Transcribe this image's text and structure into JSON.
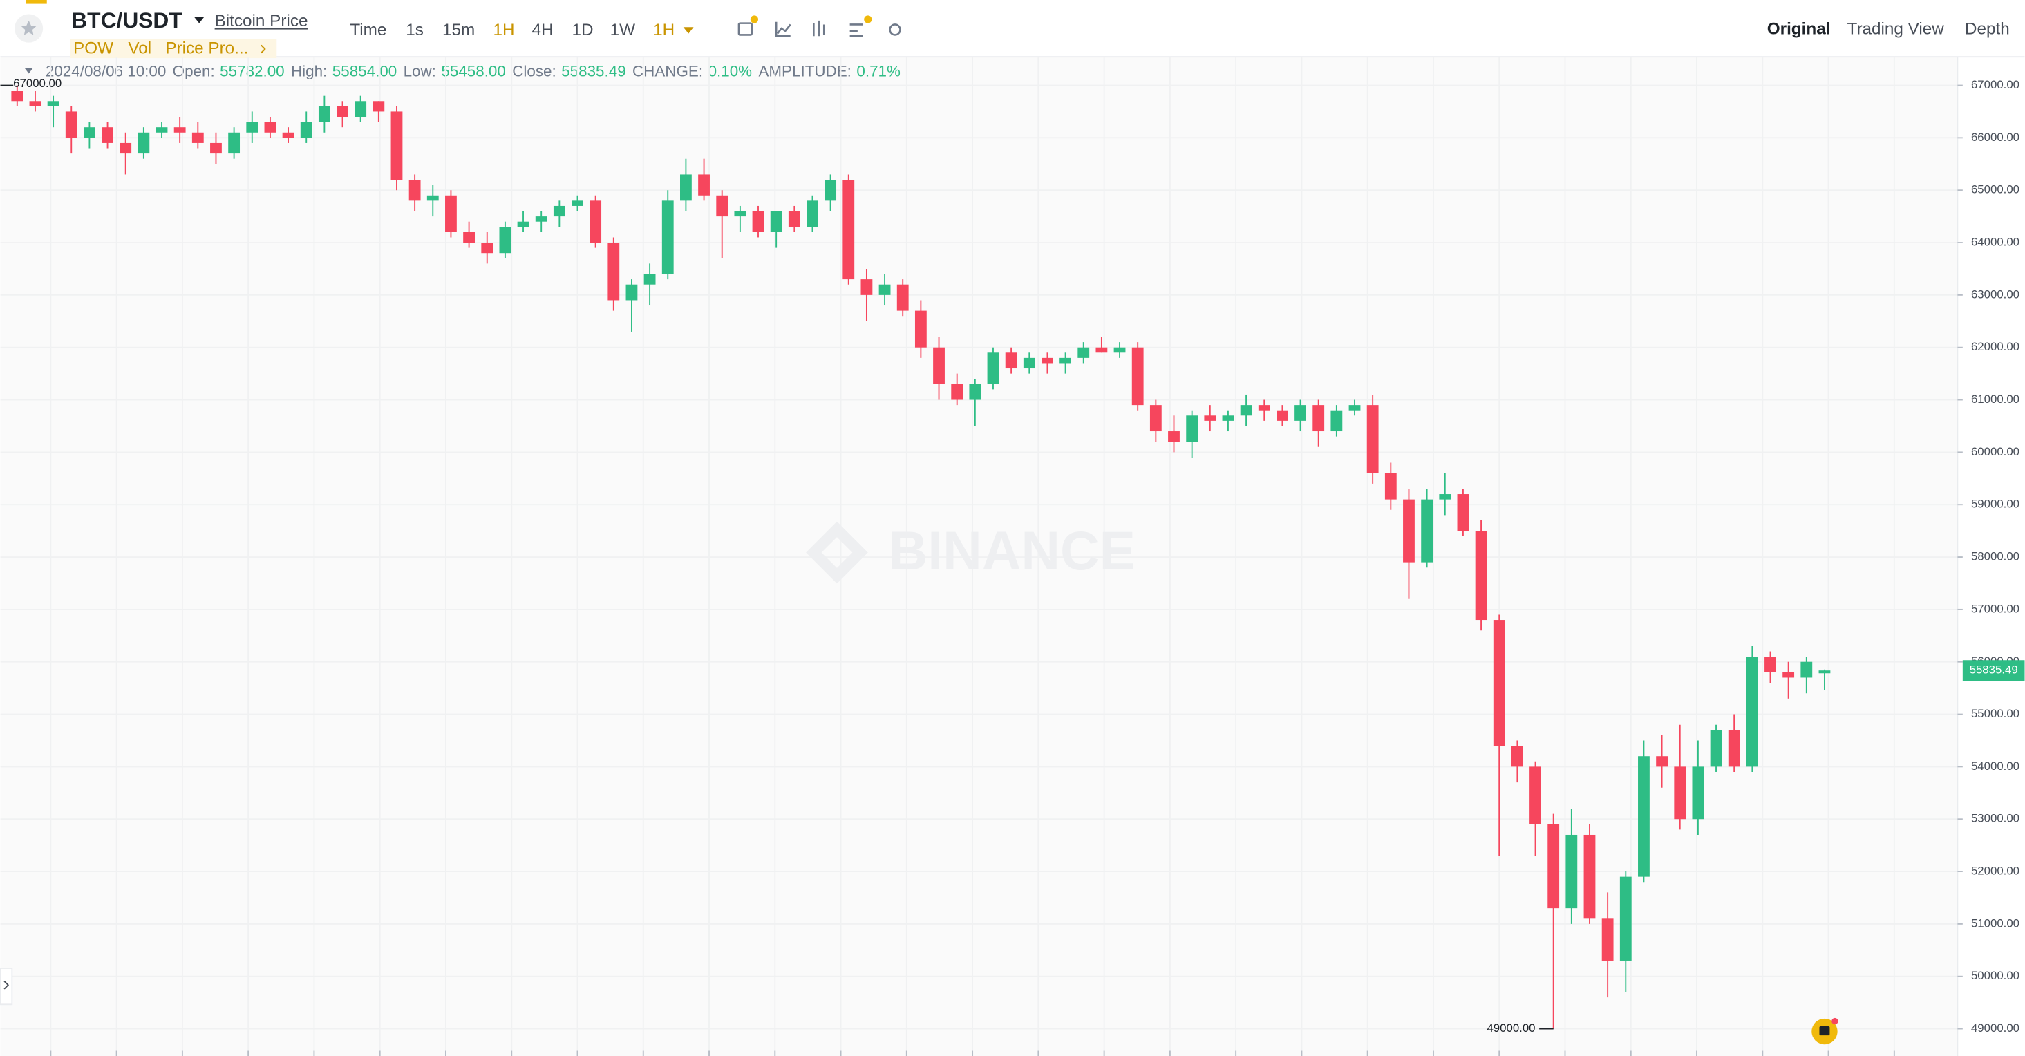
{
  "header": {
    "symbol": "BTC/USDT",
    "price_link": "Bitcoin Price",
    "intervals": [
      "Time",
      "1s",
      "15m",
      "1H",
      "4H",
      "1D",
      "1W"
    ],
    "interval_menu": "1H",
    "indicators": [
      "POW",
      "Vol",
      "Price Pro..."
    ],
    "views": [
      "Original",
      "Trading View",
      "Depth"
    ]
  },
  "info": {
    "date": "2024/08/06 10:00",
    "fields": [
      {
        "label": "Open:",
        "value": "55782.00"
      },
      {
        "label": "High:",
        "value": "55854.00"
      },
      {
        "label": "Low:",
        "value": "55458.00"
      },
      {
        "label": "Close:",
        "value": "55835.49"
      },
      {
        "label": "CHANGE:",
        "value": "0.10%"
      },
      {
        "label": "AMPLITUDE:",
        "value": "0.71%"
      }
    ]
  },
  "chart_data": {
    "type": "candlestick",
    "watermark": "BINANCE",
    "open": [
      66900,
      66700,
      66600,
      66500,
      66000,
      66200,
      65900,
      65700,
      66100,
      66200,
      66100,
      65900,
      65700,
      66100,
      66300,
      66100,
      66000,
      66300,
      66600,
      66400,
      66700,
      66500,
      65200,
      64800,
      64900,
      64200,
      64000,
      63800,
      64300,
      64400,
      64500,
      64700,
      64800,
      64000,
      62900,
      63200,
      63400,
      64800,
      65300,
      64900,
      64500,
      64600,
      64200,
      64600,
      64300,
      64800,
      65200,
      63300,
      63000,
      63200,
      62700,
      62000,
      61300,
      61000,
      61300,
      61900,
      61600,
      61800,
      61700,
      61800,
      62000,
      61900,
      62000,
      60900,
      60400,
      60200,
      60700,
      60600,
      60700,
      60900,
      60800,
      60600,
      60900,
      60400,
      60800,
      60900,
      59600,
      59100,
      57900,
      59100,
      59200,
      58500,
      56800,
      54400,
      54000,
      52900,
      51300,
      52700,
      51100,
      50300,
      51900,
      54200,
      54000,
      53000,
      54000,
      54700,
      54000,
      56100,
      55800,
      55700,
      55782
    ],
    "high": [
      67000,
      66900,
      66800,
      66600,
      66300,
      66300,
      66100,
      66200,
      66300,
      66400,
      66300,
      66100,
      66200,
      66500,
      66400,
      66200,
      66500,
      66800,
      66700,
      66800,
      66700,
      66600,
      65300,
      65100,
      65000,
      64400,
      64200,
      64400,
      64600,
      64600,
      64800,
      64900,
      64900,
      64100,
      63300,
      63600,
      65000,
      65600,
      65600,
      65000,
      64700,
      64700,
      64600,
      64700,
      64900,
      65300,
      65300,
      63500,
      63400,
      63300,
      62900,
      62200,
      61500,
      61400,
      62000,
      62000,
      61900,
      61900,
      61900,
      62100,
      62200,
      62100,
      62100,
      61000,
      60700,
      60800,
      60900,
      60800,
      61100,
      61000,
      60900,
      61000,
      61000,
      60900,
      61000,
      61100,
      59800,
      59300,
      59300,
      59600,
      59300,
      58700,
      56900,
      54500,
      54100,
      53100,
      53200,
      52900,
      51600,
      52000,
      54500,
      54600,
      54800,
      54500,
      54800,
      55000,
      56300,
      56200,
      56000,
      56100,
      55854
    ],
    "low": [
      66600,
      66500,
      66200,
      65700,
      65800,
      65800,
      65300,
      65600,
      66000,
      65900,
      65800,
      65500,
      65600,
      65900,
      66000,
      65900,
      65900,
      66100,
      66200,
      66300,
      66300,
      65000,
      64600,
      64500,
      64100,
      63900,
      63600,
      63700,
      64200,
      64200,
      64300,
      64600,
      63900,
      62700,
      62300,
      62800,
      63300,
      64600,
      64800,
      63700,
      64200,
      64100,
      63900,
      64200,
      64200,
      64600,
      63200,
      62500,
      62800,
      62600,
      61800,
      61000,
      60900,
      60500,
      61200,
      61500,
      61500,
      61500,
      61500,
      61700,
      61900,
      61800,
      60800,
      60200,
      60000,
      59900,
      60400,
      60400,
      60500,
      60600,
      60500,
      60400,
      60100,
      60300,
      60700,
      59400,
      58900,
      57200,
      57800,
      58800,
      58400,
      56600,
      52300,
      53700,
      52300,
      49000,
      51000,
      51000,
      49600,
      49700,
      51800,
      53600,
      52800,
      52700,
      53900,
      53900,
      53900,
      55600,
      55300,
      55400,
      55458
    ],
    "close": [
      66700,
      66600,
      66700,
      66000,
      66200,
      65900,
      65700,
      66100,
      66200,
      66100,
      65900,
      65700,
      66100,
      66300,
      66100,
      66000,
      66300,
      66600,
      66400,
      66700,
      66500,
      65200,
      64800,
      64900,
      64200,
      64000,
      63800,
      64300,
      64400,
      64500,
      64700,
      64800,
      64000,
      62900,
      63200,
      63400,
      64800,
      65300,
      64900,
      64500,
      64600,
      64200,
      64600,
      64300,
      64800,
      65200,
      63300,
      63000,
      63200,
      62700,
      62000,
      61300,
      61000,
      61300,
      61900,
      61600,
      61800,
      61700,
      61800,
      62000,
      61900,
      62000,
      60900,
      60400,
      60200,
      60700,
      60600,
      60700,
      60900,
      60800,
      60600,
      60900,
      60400,
      60800,
      60900,
      59600,
      59100,
      57900,
      59100,
      59200,
      58500,
      56800,
      54400,
      54000,
      52900,
      51300,
      52700,
      51100,
      50300,
      51900,
      54200,
      54000,
      53000,
      54000,
      54700,
      54000,
      56100,
      55800,
      55700,
      56000,
      55835.49
    ],
    "ylim": [
      48480,
      67545
    ],
    "yticks": [
      {
        "value": 49000,
        "label": "49000.00"
      },
      {
        "value": 50000,
        "label": "50000.00"
      },
      {
        "value": 51000,
        "label": "51000.00"
      },
      {
        "value": 52000,
        "label": "52000.00"
      },
      {
        "value": 53000,
        "label": "53000.00"
      },
      {
        "value": 54000,
        "label": "54000.00"
      },
      {
        "value": 55000,
        "label": "55000.00"
      },
      {
        "value": 56000,
        "label": "56000.00"
      },
      {
        "value": 57000,
        "label": "57000.00"
      },
      {
        "value": 58000,
        "label": "58000.00"
      },
      {
        "value": 59000,
        "label": "59000.00"
      },
      {
        "value": 60000,
        "label": "60000.00"
      },
      {
        "value": 61000,
        "label": "61000.00"
      },
      {
        "value": 62000,
        "label": "62000.00"
      },
      {
        "value": 63000,
        "label": "63000.00"
      },
      {
        "value": 64000,
        "label": "64000.00"
      },
      {
        "value": 65000,
        "label": "65000.00"
      },
      {
        "value": 66000,
        "label": "66000.00"
      },
      {
        "value": 67000,
        "label": "67000.00"
      }
    ],
    "high_marker": {
      "value": 67000,
      "label": "67000.00"
    },
    "low_marker": {
      "value": 49000,
      "label": "49000.00"
    },
    "last_price": {
      "value": 55835.49,
      "label": "55835.49"
    },
    "up_color": "#2ebd85",
    "down_color": "#f6465d",
    "grid": true
  }
}
